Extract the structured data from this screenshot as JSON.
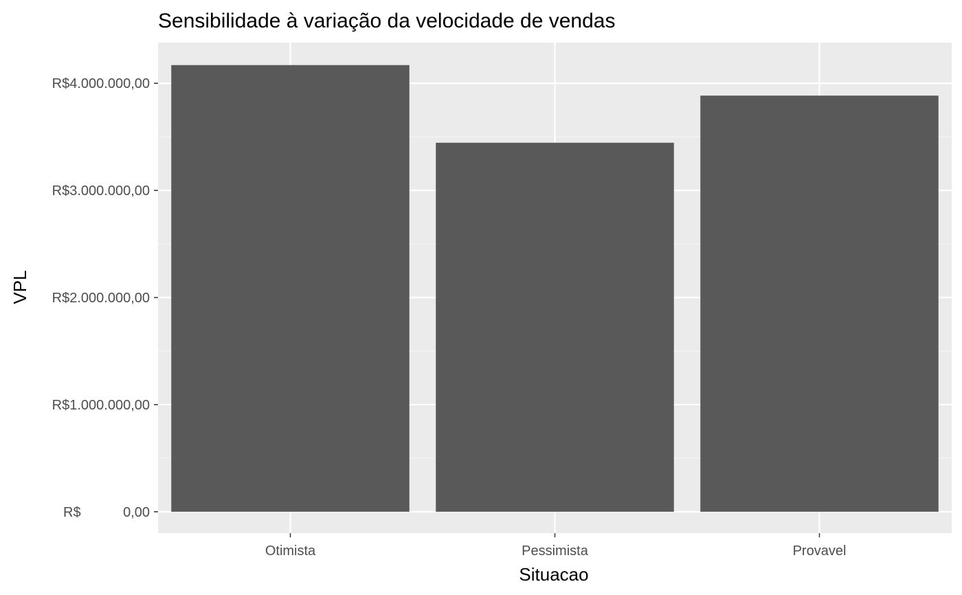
{
  "chart_data": {
    "type": "bar",
    "title": "Sensibilidade à variação da velocidade de vendas",
    "xlabel": "Situacao",
    "ylabel": "VPL",
    "categories": [
      "Otimista",
      "Pessimista",
      "Provavel"
    ],
    "values": [
      4170000,
      3445000,
      3885000
    ],
    "ylim": [
      -200000,
      4380000
    ],
    "yticks": [
      0,
      1000000,
      2000000,
      3000000,
      4000000
    ],
    "ytick_labels": [
      {
        "prefix": "R$",
        "value": "0,00"
      },
      {
        "prefix": "",
        "value": "R$1.000.000,00"
      },
      {
        "prefix": "",
        "value": "R$2.000.000,00"
      },
      {
        "prefix": "",
        "value": "R$3.000.000,00"
      },
      {
        "prefix": "",
        "value": "R$4.000.000,00"
      }
    ],
    "grid": true,
    "legend": "none",
    "colors": {
      "panel_background": "#ebebeb",
      "grid_major": "#ffffff",
      "grid_minor": "#f5f5f5",
      "bar_fill": "#595959",
      "tick_mark": "#333333",
      "tick_label": "#4d4d4d"
    }
  }
}
